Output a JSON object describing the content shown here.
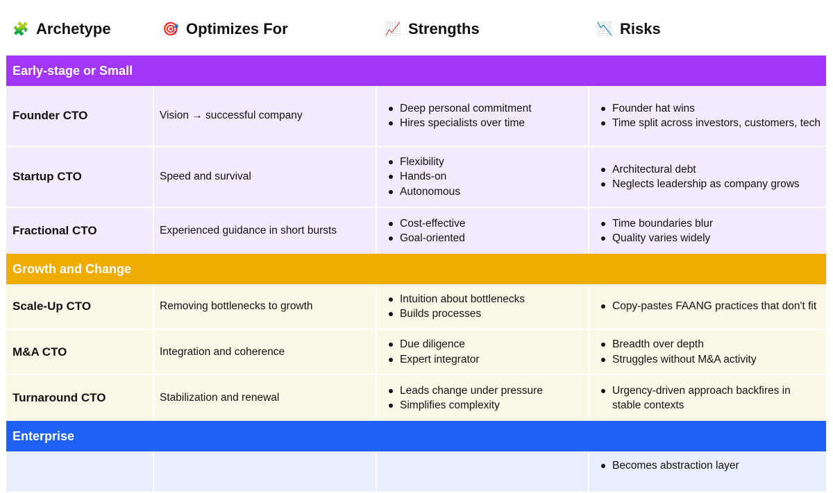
{
  "columns": [
    {
      "icon": "puzzle-icon",
      "emoji": "🧩",
      "label": "Archetype"
    },
    {
      "icon": "target-icon",
      "emoji": "🎯",
      "label": "Optimizes For"
    },
    {
      "icon": "chart-up-icon",
      "emoji": "📈",
      "label": "Strengths"
    },
    {
      "icon": "chart-down-icon",
      "emoji": "📉",
      "label": "Risks"
    }
  ],
  "colors": {
    "early_header": "#a235f7",
    "early_row": "#f3eafd",
    "growth_header": "#eeab00",
    "growth_row": "#fcf8e8",
    "enterprise_header": "#1e61f5",
    "enterprise_row": "#e8eefd"
  },
  "sections": [
    {
      "title": "Early-stage or Small",
      "rows": [
        {
          "archetype": "Founder CTO",
          "optimizes": "Vision → successful company",
          "strengths": [
            "Deep personal commitment",
            "Hires specialists over time"
          ],
          "risks": [
            "Founder hat wins",
            "Time split across investors, customers, tech"
          ]
        },
        {
          "archetype": "Startup CTO",
          "optimizes": "Speed and survival",
          "strengths": [
            "Flexibility",
            "Hands-on",
            "Autonomous"
          ],
          "risks": [
            "Architectural debt",
            "Neglects leadership as company grows"
          ]
        },
        {
          "archetype": "Fractional CTO",
          "optimizes": "Experienced guidance in short bursts",
          "strengths": [
            "Cost-effective",
            "Goal-oriented"
          ],
          "risks": [
            "Time boundaries blur",
            "Quality varies widely"
          ]
        }
      ]
    },
    {
      "title": "Growth and Change",
      "rows": [
        {
          "archetype": "Scale-Up CTO",
          "optimizes": "Removing bottlenecks to growth",
          "strengths": [
            "Intuition about bottlenecks",
            "Builds processes"
          ],
          "risks": [
            "Copy-pastes FAANG practices that don't fit"
          ]
        },
        {
          "archetype": "M&A CTO",
          "optimizes": "Integration and coherence",
          "strengths": [
            "Due diligence",
            "Expert integrator"
          ],
          "risks": [
            "Breadth over depth",
            "Struggles without M&A activity"
          ]
        },
        {
          "archetype": "Turnaround CTO",
          "optimizes": "Stabilization and renewal",
          "strengths": [
            "Leads change under pressure",
            "Simplifies complexity"
          ],
          "risks": [
            "Urgency-driven approach backfires in stable contexts"
          ]
        }
      ]
    },
    {
      "title": "Enterprise",
      "rows": [
        {
          "archetype": "",
          "optimizes": "",
          "strengths": [],
          "risks": [
            "Becomes abstraction layer"
          ]
        }
      ]
    }
  ]
}
